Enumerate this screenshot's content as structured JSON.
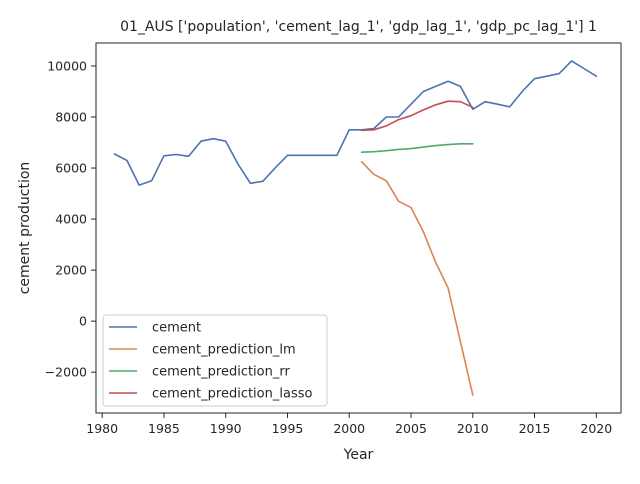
{
  "chart_data": {
    "type": "line",
    "title": "01_AUS ['population', 'cement_lag_1', 'gdp_lag_1', 'gdp_pc_lag_1'] 1",
    "xlabel": "Year",
    "ylabel": "cement production",
    "xlim": [
      1979.5,
      2022
    ],
    "ylim": [
      -3600,
      10900
    ],
    "xticks": [
      1980,
      1985,
      1990,
      1995,
      2000,
      2005,
      2010,
      2015,
      2020
    ],
    "yticks": [
      -2000,
      0,
      2000,
      4000,
      6000,
      8000,
      10000
    ],
    "ytick_labels": [
      "−2000",
      "0",
      "2000",
      "4000",
      "6000",
      "8000",
      "10000"
    ],
    "grid": false,
    "legend_position": "lower-left",
    "series": [
      {
        "name": "cement",
        "color": "#4c72b0",
        "x": [
          1981,
          1982,
          1983,
          1984,
          1985,
          1986,
          1987,
          1988,
          1989,
          1990,
          1991,
          1992,
          1993,
          1994,
          1995,
          1996,
          1997,
          1998,
          1999,
          2000,
          2001,
          2002,
          2003,
          2004,
          2005,
          2006,
          2007,
          2008,
          2009,
          2010,
          2011,
          2012,
          2013,
          2014,
          2015,
          2016,
          2017,
          2018,
          2019,
          2020
        ],
        "values": [
          6550,
          6300,
          5330,
          5500,
          6480,
          6530,
          6460,
          7050,
          7150,
          7050,
          6150,
          5400,
          5480,
          6000,
          6500,
          6500,
          6500,
          6500,
          6500,
          7500,
          7500,
          7550,
          8000,
          8000,
          8500,
          9000,
          9200,
          9400,
          9200,
          8300,
          8600,
          8500,
          8400,
          9000,
          9500,
          9600,
          9700,
          10200,
          9900,
          9600
        ]
      },
      {
        "name": "cement_prediction_lm",
        "color": "#dd8452",
        "x": [
          2001,
          2002,
          2003,
          2004,
          2005,
          2006,
          2007,
          2008,
          2009,
          2010
        ],
        "values": [
          6250,
          5750,
          5500,
          4700,
          4450,
          3500,
          2300,
          1300,
          -800,
          -2900
        ]
      },
      {
        "name": "cement_prediction_rr",
        "color": "#55a868",
        "x": [
          2001,
          2002,
          2003,
          2004,
          2005,
          2006,
          2007,
          2008,
          2009,
          2010
        ],
        "values": [
          6620,
          6640,
          6680,
          6730,
          6760,
          6820,
          6880,
          6920,
          6950,
          6950
        ]
      },
      {
        "name": "cement_prediction_lasso",
        "color": "#c44e52",
        "x": [
          2001,
          2002,
          2003,
          2004,
          2005,
          2006,
          2007,
          2008,
          2009,
          2010
        ],
        "values": [
          7480,
          7500,
          7650,
          7900,
          8050,
          8280,
          8480,
          8620,
          8600,
          8380
        ]
      }
    ]
  }
}
